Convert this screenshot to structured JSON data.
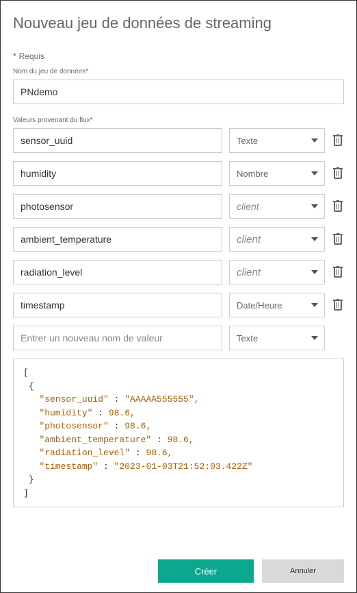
{
  "title": "Nouveau jeu de données de streaming",
  "required_label": "Requis",
  "dataset_name_label": "Nom du jeu de données",
  "dataset_name_value": "PNdemo",
  "stream_values_label": "Valeurs provenant du flux",
  "new_value_placeholder": "Entrer un nouveau nom de valeur",
  "fields": [
    {
      "name": "sensor_uuid",
      "type": "Texte",
      "type_style": "normal"
    },
    {
      "name": "humidity",
      "type": "Nombre",
      "type_style": "normal"
    },
    {
      "name": "photosensor",
      "type": "client",
      "type_style": "italic-small"
    },
    {
      "name": "ambient_temperature",
      "type": "client",
      "type_style": "italic"
    },
    {
      "name": "radiation_level",
      "type": "client",
      "type_style": "italic"
    },
    {
      "name": "timestamp",
      "type": "Date/Heure",
      "type_style": "normal"
    }
  ],
  "new_field_type": "Texte",
  "json_preview": {
    "sensor_uuid": "AAAAA555555",
    "humidity": 98.6,
    "photosensor": 98.6,
    "ambient_temperature": 98.6,
    "radiation_level": 98.6,
    "timestamp": "2023-01-03T21:52:03.422Z"
  },
  "buttons": {
    "create": "Créer",
    "cancel": "Annuler"
  },
  "colors": {
    "primary": "#0aa88f",
    "secondary_bg": "#d9d9d9",
    "border": "#cccccc",
    "title_color": "#666666",
    "text": "#333333",
    "json_highlight": "#b15c00",
    "asterisk": "#c0392b"
  }
}
